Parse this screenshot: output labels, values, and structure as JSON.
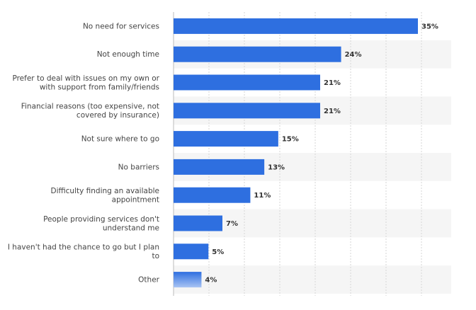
{
  "chart_data": {
    "type": "bar",
    "orientation": "horizontal",
    "title": "",
    "xlabel": "",
    "ylabel": "",
    "value_suffix": "%",
    "xlim": [
      0,
      35
    ],
    "grid": true,
    "bar_color": "#2e6fe0",
    "highlight_color": "#7aa6ec",
    "categories": [
      [
        "No need for services"
      ],
      [
        "Not enough time"
      ],
      [
        "Prefer to deal with issues on my own or",
        "with support from family/friends"
      ],
      [
        "Financial reasons (too expensive, not",
        "covered by insurance)"
      ],
      [
        "Not sure where to go"
      ],
      [
        "No barriers"
      ],
      [
        "Difficulty finding an available",
        "appointment"
      ],
      [
        "People providing services don't",
        "understand me"
      ],
      [
        "I haven't had the chance to go but I plan",
        "to"
      ],
      [
        "Other"
      ]
    ],
    "values": [
      35,
      24,
      21,
      21,
      15,
      13,
      11,
      7,
      5,
      4
    ],
    "value_labels": [
      "35%",
      "24%",
      "21%",
      "21%",
      "15%",
      "13%",
      "11%",
      "7%",
      "5%",
      "4%"
    ]
  }
}
